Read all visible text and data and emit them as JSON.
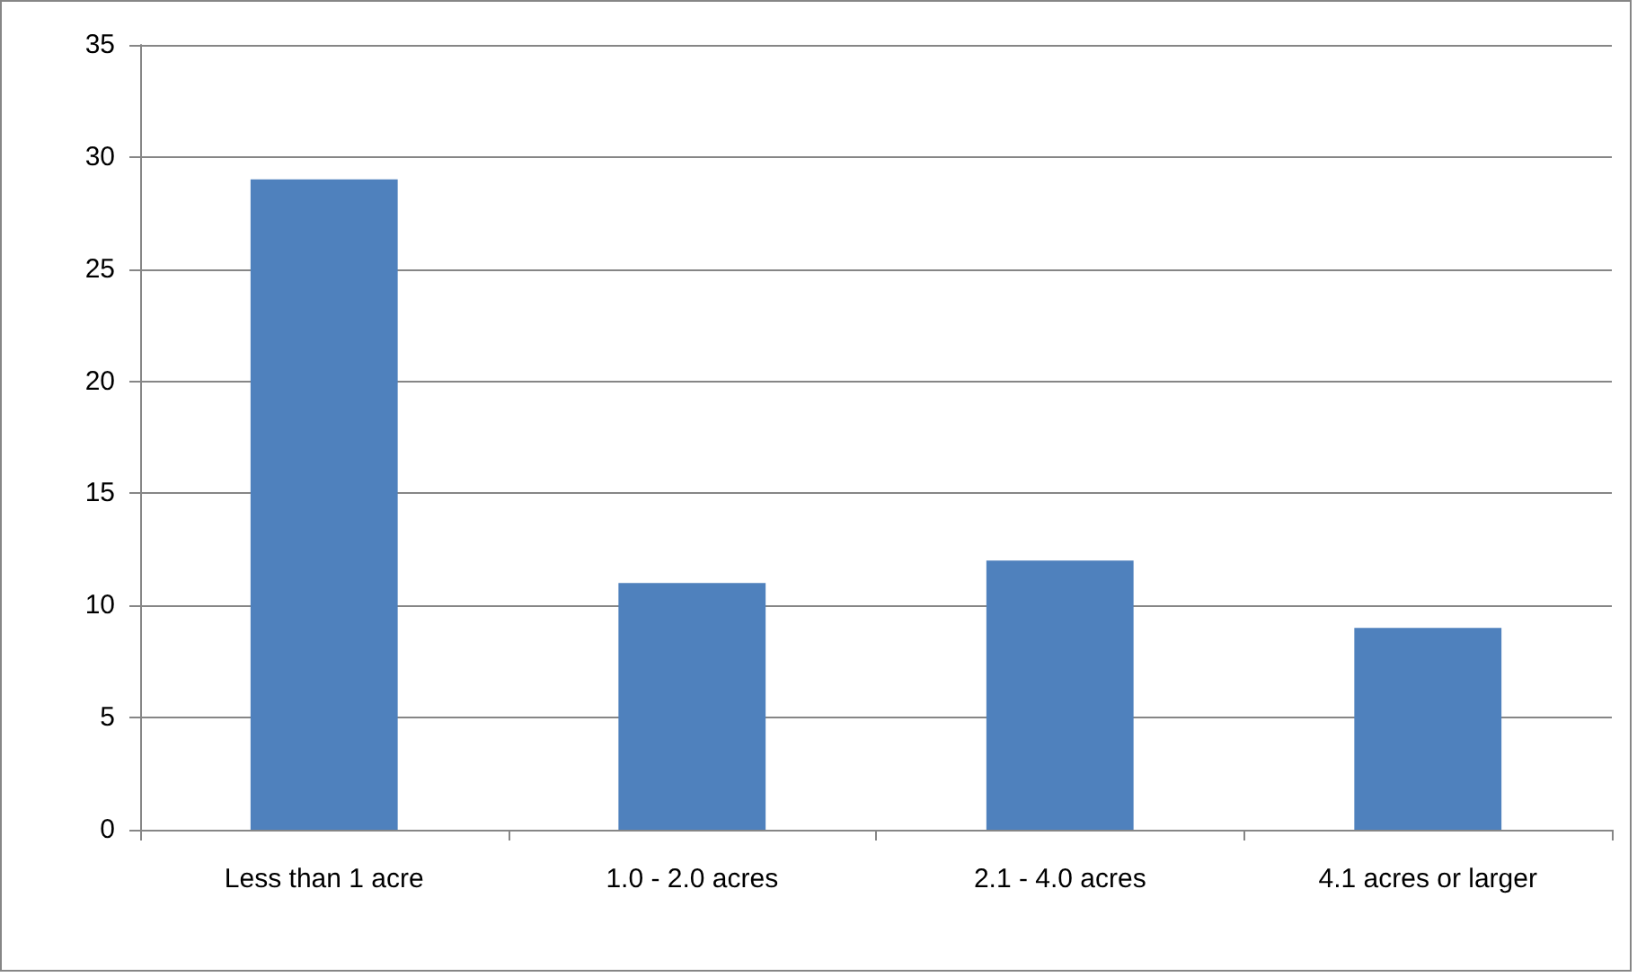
{
  "chart_data": {
    "type": "bar",
    "categories": [
      "Less than 1 acre",
      "1.0 - 2.0 acres",
      "2.1 - 4.0 acres",
      "4.1 acres or larger"
    ],
    "values": [
      29,
      11,
      12,
      9
    ],
    "color": "#4f81bd",
    "ylim": [
      0,
      35
    ],
    "yticks": [
      0,
      5,
      10,
      15,
      20,
      25,
      30,
      35
    ],
    "grid": "y"
  }
}
